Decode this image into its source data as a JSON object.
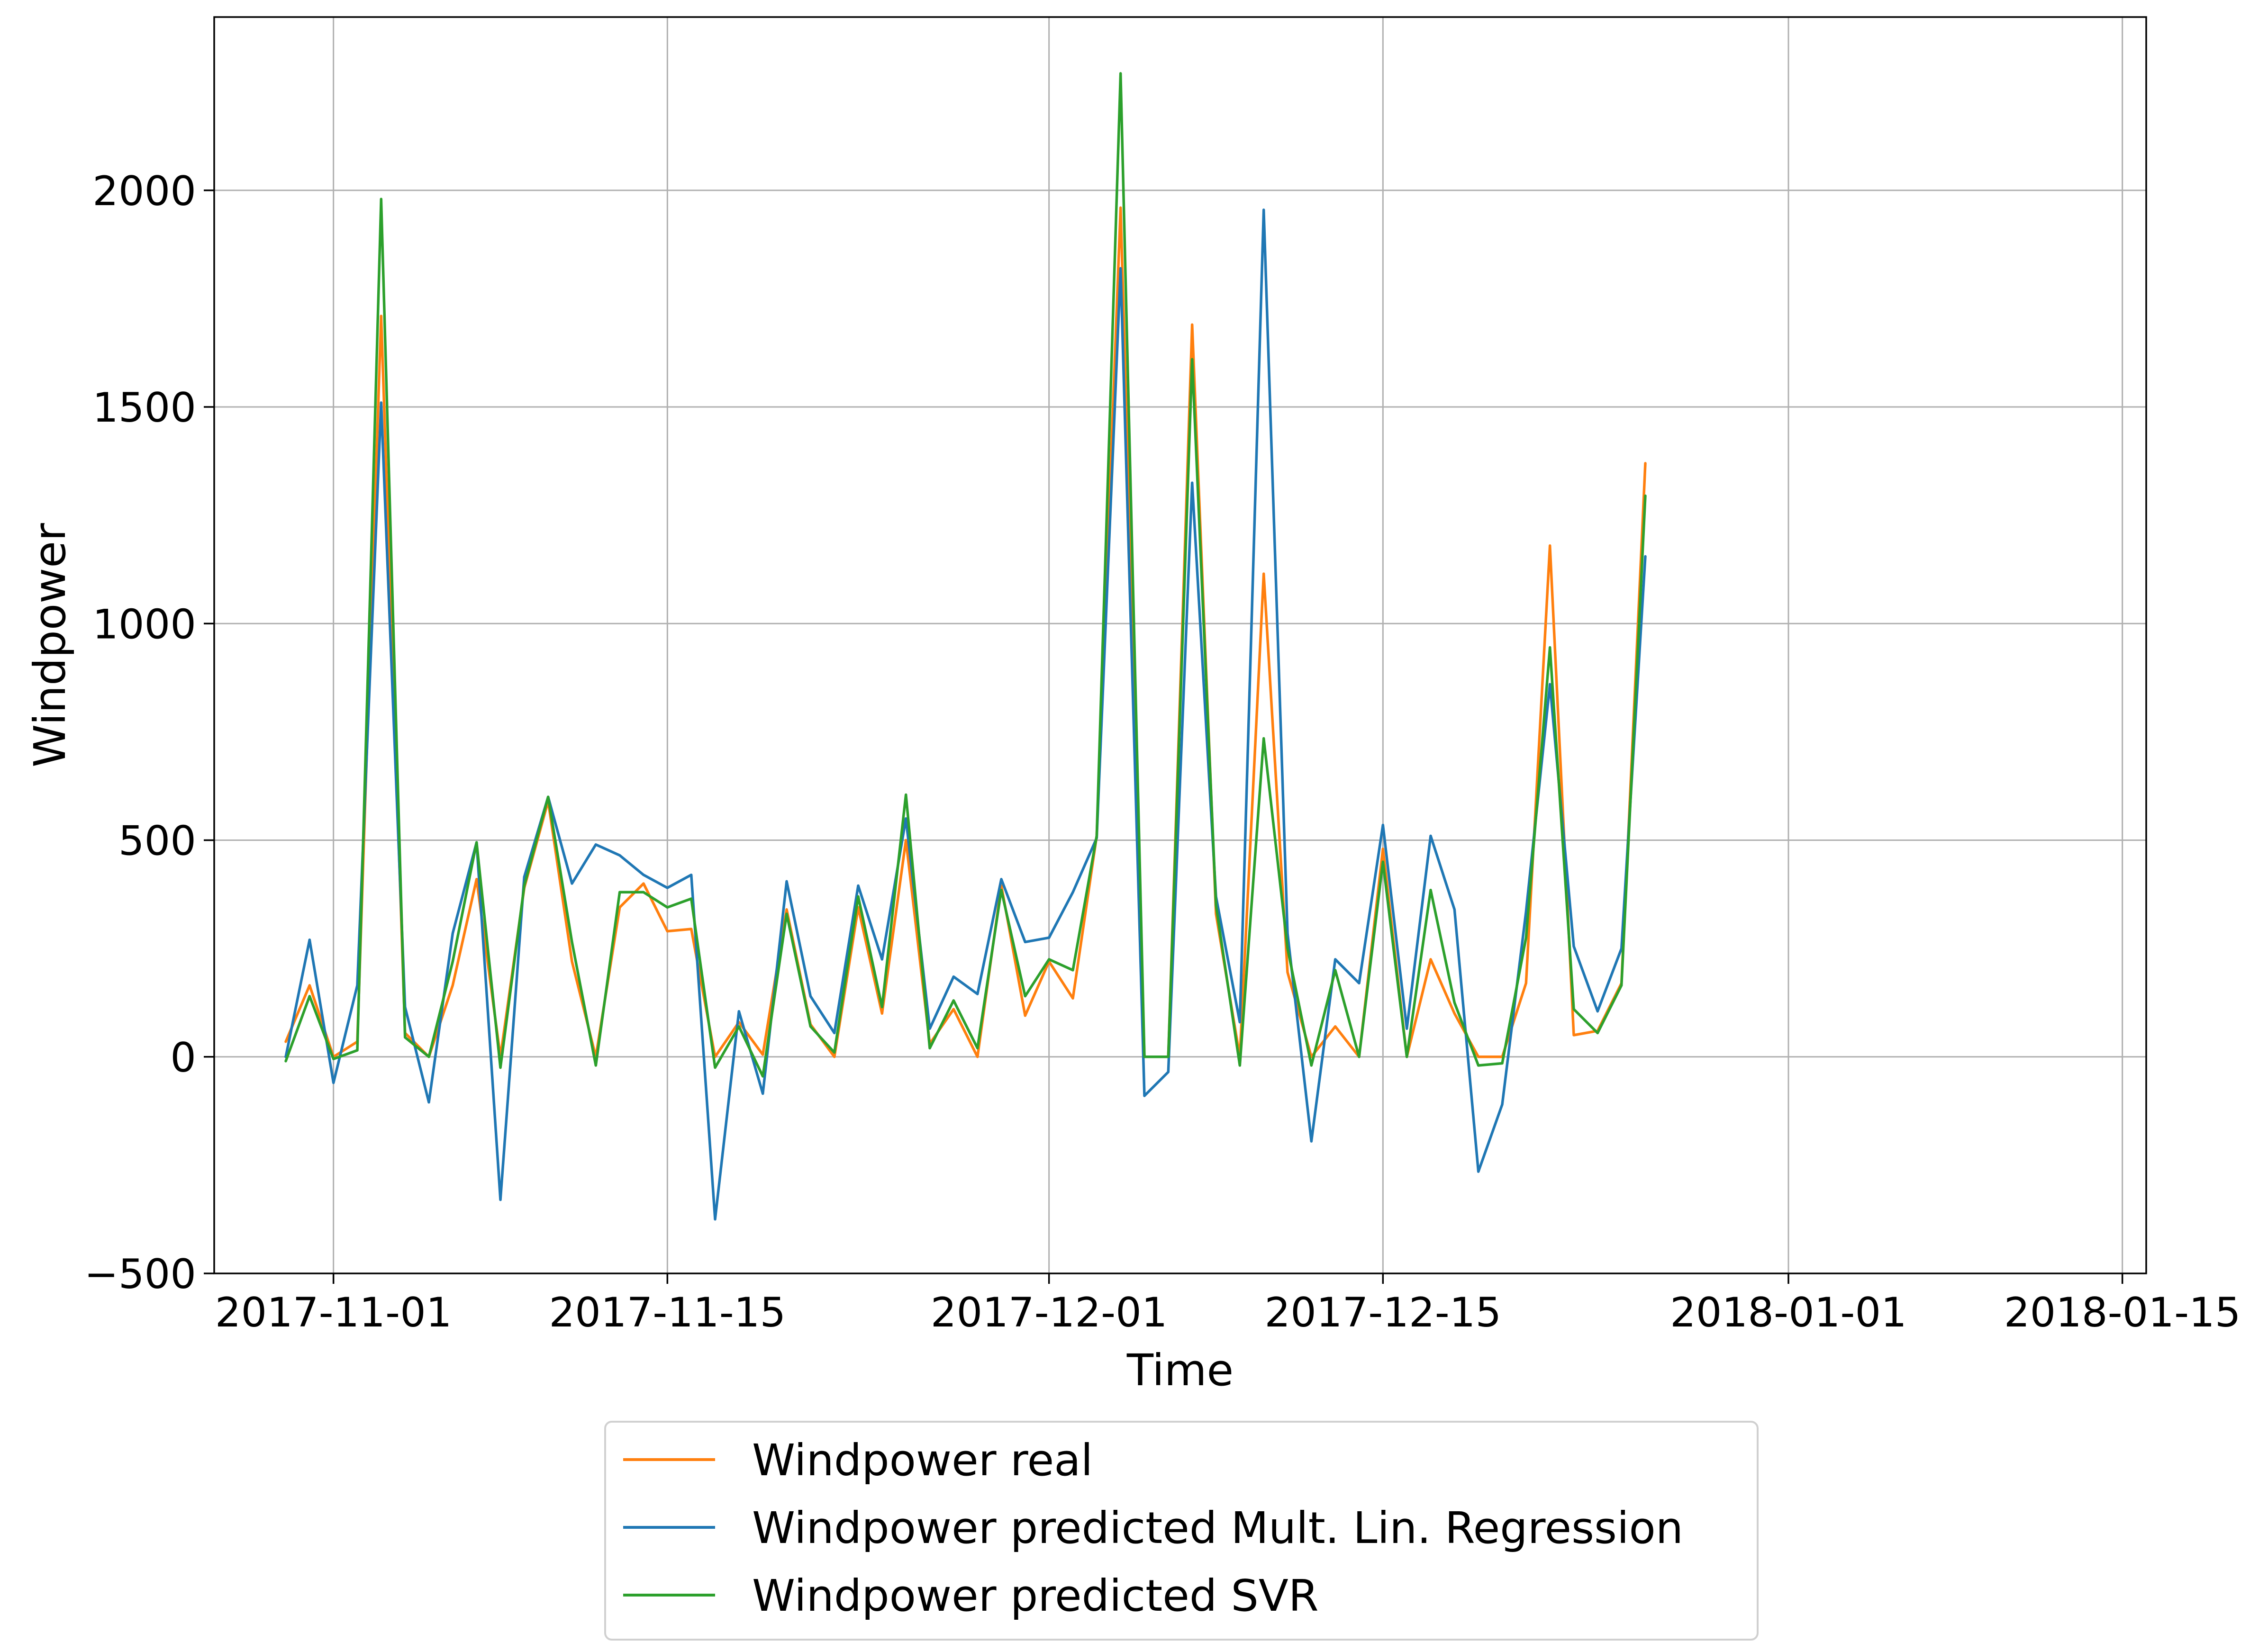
{
  "chart_data": {
    "type": "line",
    "xlabel": "Time",
    "ylabel": "Windpower",
    "x_start": "2017-10-30",
    "x_step_days": 1,
    "xlim": [
      "2017-10-27",
      "2018-01-16"
    ],
    "ylim": [
      -500,
      2400
    ],
    "x_ticks": [
      "2017-11-01",
      "2017-11-15",
      "2017-12-01",
      "2017-12-15",
      "2018-01-01",
      "2018-01-15"
    ],
    "y_ticks": [
      -500,
      0,
      500,
      1000,
      1500,
      2000
    ],
    "y_tick_labels": [
      "−500",
      "0",
      "500",
      "1000",
      "1500",
      "2000"
    ],
    "grid": true,
    "legend_position": "below",
    "series": [
      {
        "name": "Windpower real",
        "color": "#ff7f0e",
        "values": [
          35,
          165,
          0,
          35,
          1710,
          55,
          0,
          165,
          410,
          0,
          390,
          590,
          220,
          0,
          345,
          400,
          290,
          295,
          0,
          80,
          5,
          340,
          75,
          0,
          345,
          100,
          500,
          30,
          110,
          0,
          395,
          95,
          220,
          135,
          510,
          1960,
          0,
          0,
          1690,
          330,
          0,
          1115,
          195,
          0,
          70,
          0,
          480,
          0,
          225,
          100,
          0,
          0,
          170,
          1180,
          50,
          60,
          170,
          1370
        ]
      },
      {
        "name": "Windpower predicted Mult. Lin. Regression",
        "color": "#1f77b4",
        "values": [
          0,
          270,
          -60,
          165,
          1510,
          115,
          -105,
          285,
          495,
          -330,
          415,
          600,
          400,
          490,
          465,
          420,
          390,
          420,
          -375,
          105,
          -85,
          405,
          140,
          55,
          395,
          225,
          550,
          65,
          185,
          145,
          410,
          265,
          275,
          380,
          505,
          1820,
          -90,
          -35,
          1325,
          370,
          80,
          1955,
          285,
          -195,
          225,
          170,
          535,
          65,
          510,
          340,
          -265,
          -110,
          335,
          860,
          255,
          105,
          250,
          1155
        ]
      },
      {
        "name": "Windpower predicted SVR",
        "color": "#2ca02c",
        "values": [
          -10,
          140,
          -5,
          15,
          1980,
          45,
          0,
          220,
          495,
          -25,
          395,
          600,
          265,
          -20,
          380,
          380,
          345,
          365,
          -25,
          70,
          -45,
          330,
          70,
          10,
          370,
          115,
          605,
          20,
          130,
          20,
          385,
          140,
          225,
          200,
          510,
          2270,
          0,
          0,
          1610,
          350,
          -20,
          735,
          250,
          -20,
          200,
          0,
          450,
          0,
          385,
          125,
          -20,
          -15,
          275,
          945,
          110,
          55,
          165,
          1295
        ]
      }
    ]
  }
}
